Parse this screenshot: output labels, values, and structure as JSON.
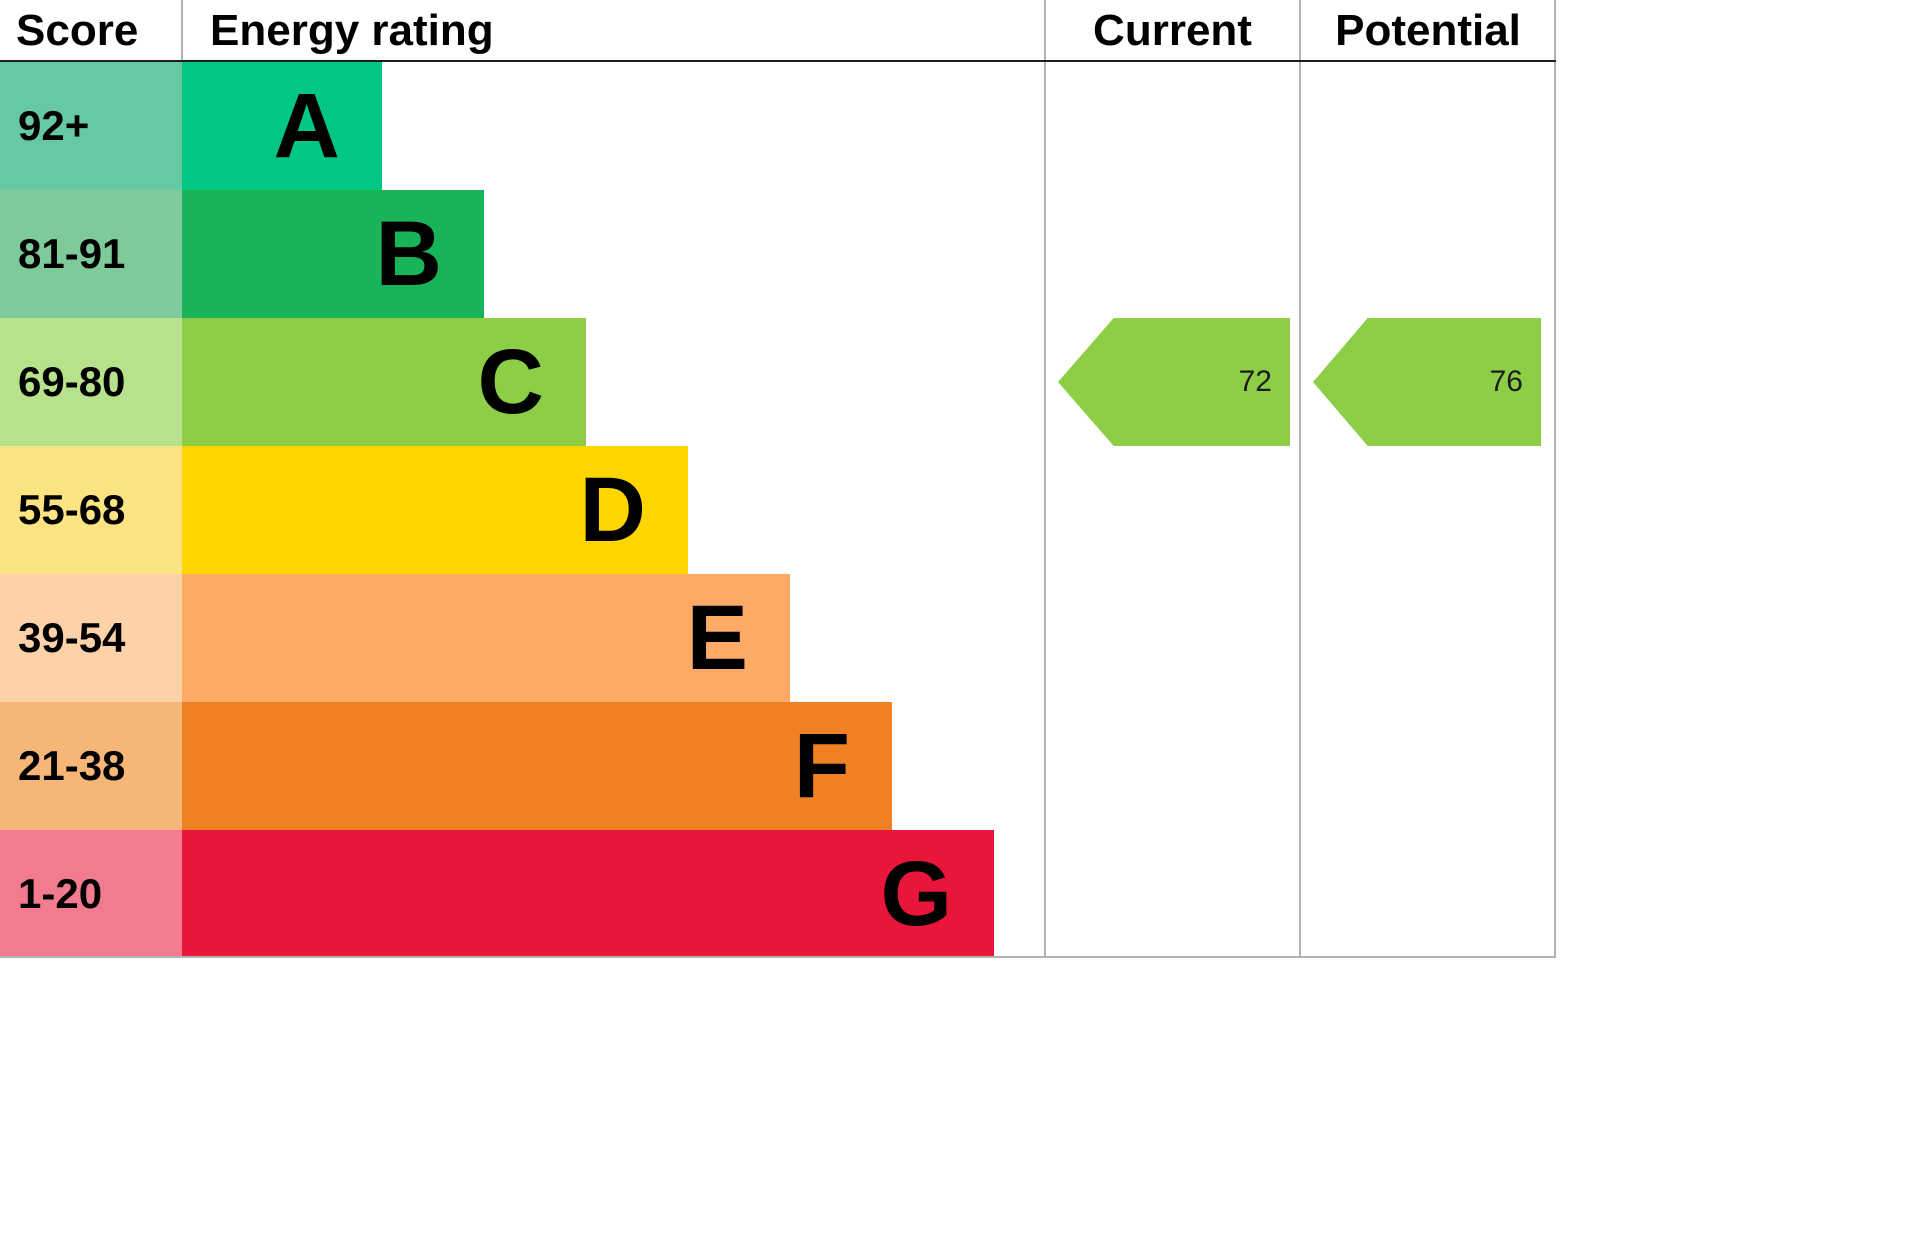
{
  "header": {
    "score": "Score",
    "energy_rating": "Energy rating",
    "current": "Current",
    "potential": "Potential"
  },
  "chart_data": {
    "type": "bar",
    "subtype": "epc-energy-efficiency-rating",
    "columns": [
      "Score",
      "Energy rating",
      "Current",
      "Potential"
    ],
    "categories": [
      "A",
      "B",
      "C",
      "D",
      "E",
      "F",
      "G"
    ],
    "bands": [
      {
        "letter": "A",
        "score_range": "92+",
        "bar_color": "#00c781",
        "score_color": "#66c9a4"
      },
      {
        "letter": "B",
        "score_range": "81-91",
        "bar_color": "#19b459",
        "score_color": "#7fca9b"
      },
      {
        "letter": "C",
        "score_range": "69-80",
        "bar_color": "#8dce46",
        "score_color": "#b8e18c"
      },
      {
        "letter": "D",
        "score_range": "55-68",
        "bar_color": "#ffd500",
        "score_color": "#fbe481"
      },
      {
        "letter": "E",
        "score_range": "39-54",
        "bar_color": "#fcaa65",
        "score_color": "#fdd2a9"
      },
      {
        "letter": "F",
        "score_range": "21-38",
        "bar_color": "#ef8023",
        "score_color": "#f5b677"
      },
      {
        "letter": "G",
        "score_range": "1-20",
        "bar_color": "#e9153b",
        "score_color": "#f27b90"
      }
    ],
    "current": {
      "value": 72,
      "band": "C",
      "arrow_color": "#8dce46"
    },
    "potential": {
      "value": 76,
      "band": "C",
      "arrow_color": "#8dce46"
    }
  }
}
